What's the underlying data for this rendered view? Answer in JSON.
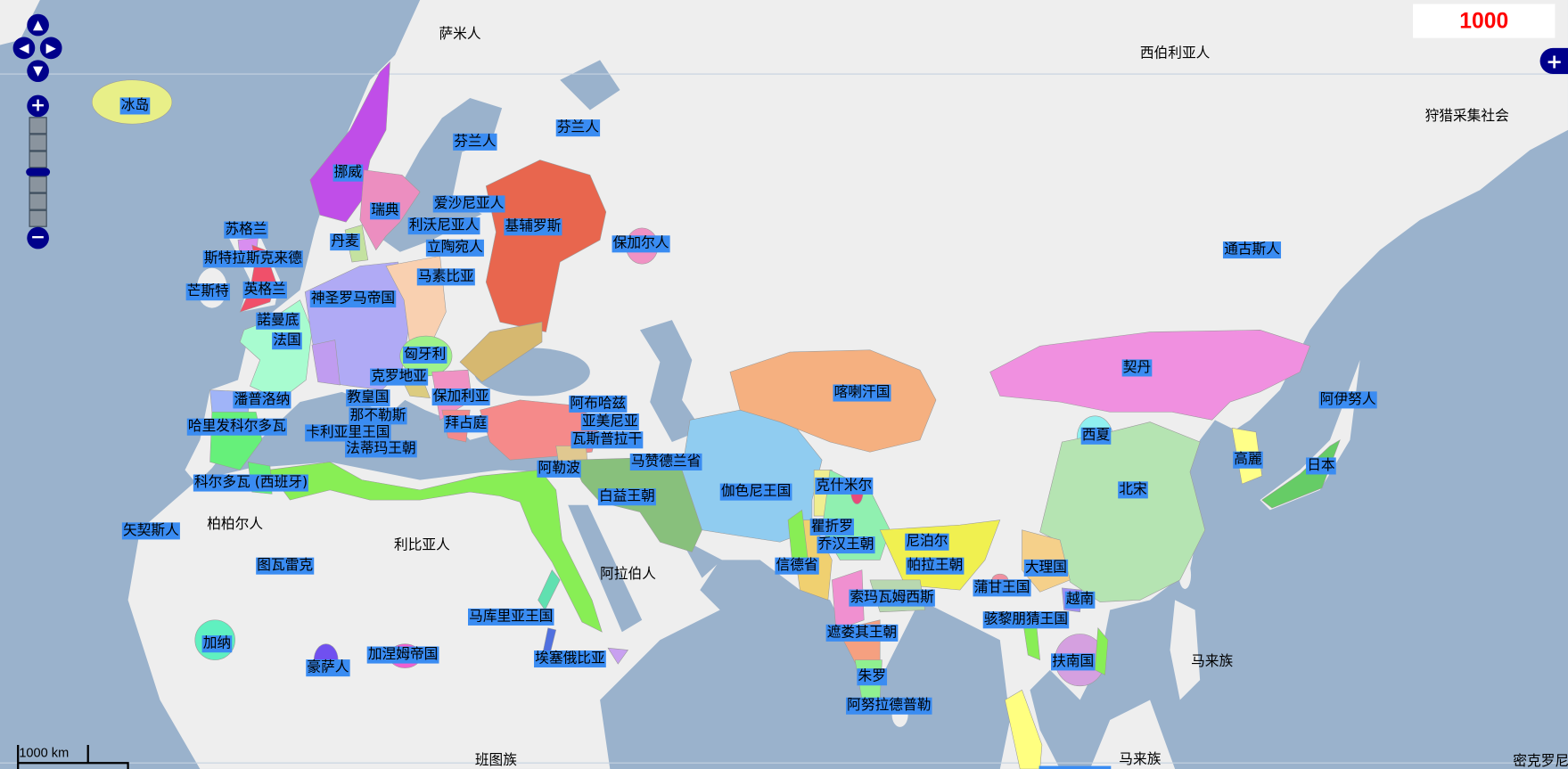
{
  "year": "1000",
  "scale_label": "1000 km",
  "controls": {
    "pan_up": "▲",
    "pan_left": "◀",
    "pan_right": "▶",
    "pan_down": "▼",
    "zoom_in": "+",
    "zoom_out": "−",
    "expand": "+"
  },
  "colors": {
    "sea": "#9ab2cc",
    "land": "#eeeeee",
    "label_bg": "#3a8cf2",
    "year_text": "#ff0000",
    "controls": "#00008b"
  },
  "states": [
    "冰岛",
    "芬兰人",
    "芬兰人",
    "挪威",
    "瑞典",
    "爱沙尼亚人",
    "利沃尼亚人",
    "基辅罗斯",
    "立陶宛人",
    "保加尔人",
    "苏格兰",
    "丹麦",
    "斯特拉斯克来德",
    "马素比亚",
    "芒斯特",
    "英格兰",
    "神圣罗马帝国",
    "諾曼底",
    "法国",
    "匈牙利",
    "克罗地亚",
    "潘普洛纳",
    "教皇国",
    "保加利亚",
    "那不勒斯",
    "哈里发科尔多瓦",
    "卡利亚里王国",
    "拜占庭",
    "法蒂玛王朝",
    "阿布哈兹",
    "亚美尼亚",
    "瓦斯普拉干",
    "阿勒波",
    "马赞德兰省",
    "白益王朝",
    "科尔多瓦 (西班牙)",
    "喀喇汗国",
    "伽色尼王国",
    "克什米尔",
    "契丹",
    "阿伊努人",
    "西夏",
    "高麗",
    "日本",
    "北宋",
    "通古斯人",
    "矢契斯人",
    "图瓦雷克",
    "马库里亚王国",
    "加纳",
    "豪萨人",
    "加涅姆帝国",
    "埃塞俄比亚",
    "瞿折罗",
    "乔汉王朝",
    "尼泊尔",
    "信德省",
    "帕拉王朝",
    "大理国",
    "蒲甘王国",
    "索玛瓦姆西斯",
    "越南",
    "骇黎朋猜王国",
    "遮娄其王朝",
    "扶南国",
    "朱罗",
    "阿努拉德普勒"
  ],
  "peoples": [
    "萨米人",
    "西伯利亚人",
    "狩猎采集社会",
    "柏柏尔人",
    "利比亚人",
    "阿拉伯人",
    "班图族",
    "马来族",
    "马来族",
    "密克罗尼西亚"
  ]
}
